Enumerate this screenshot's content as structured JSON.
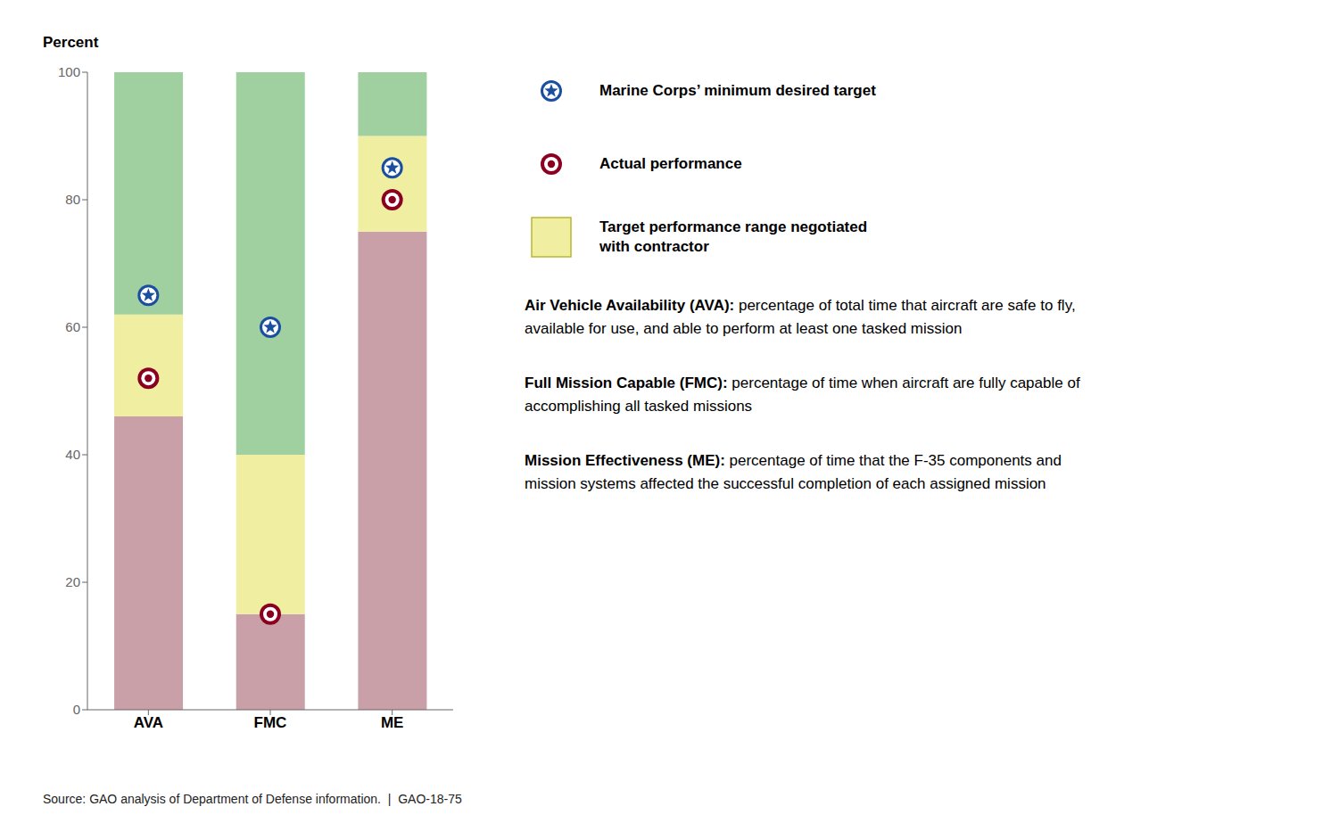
{
  "chart_data": {
    "type": "bar",
    "stacked": true,
    "grid": false,
    "ylabel": "Percent",
    "categories": [
      "AVA",
      "FMC",
      "ME"
    ],
    "ylim": [
      0,
      100
    ],
    "yticks": [
      0,
      20,
      40,
      60,
      80,
      100
    ],
    "series": [
      {
        "color": "#c9a0a8",
        "values": [
          46,
          15,
          75
        ]
      },
      {
        "name": "Target performance range negotiated\nwith contractor",
        "color": "#f0eea0",
        "values": [
          16,
          25,
          15
        ]
      },
      {
        "color": "#a0cfa0",
        "values": [
          38,
          60,
          10
        ]
      },
      {
        "name": "Marine Corps’ minimum desired target",
        "type": "scatter",
        "marker": "star",
        "color": "#1a4fa0",
        "values": [
          65,
          60,
          85
        ]
      },
      {
        "name": "Actual performance",
        "type": "scatter",
        "marker": "circle",
        "color": "#8b0020",
        "values": [
          52,
          15,
          80
        ]
      }
    ],
    "annotations": [
      {
        "bold": "Air Vehicle Availability (AVA):",
        "text": " percentage of total time that aircraft are safe to fly, available for use, and able to perform at least one tasked mission"
      },
      {
        "bold": "Full Mission Capable (FMC):",
        "text": " percentage of time when aircraft are fully capable of accomplishing all tasked missions"
      },
      {
        "bold": "Mission Effectiveness (ME):",
        "text": " percentage of time that the F-35 components and mission systems affected the successful completion of each assigned mission"
      },
      {
        "text": "Source: GAO analysis of Department of Defense information.  |  GAO-18-75"
      }
    ]
  }
}
